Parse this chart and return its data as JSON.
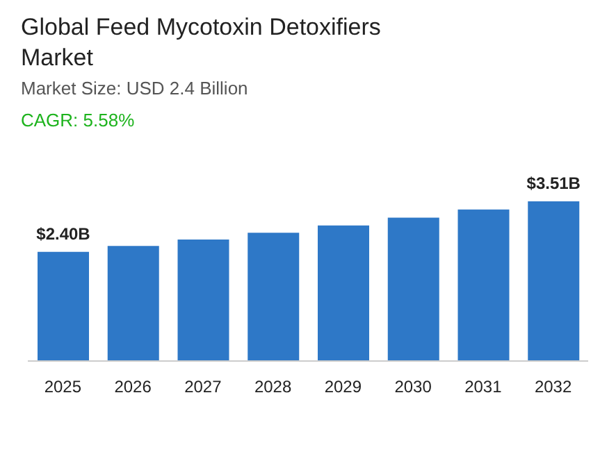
{
  "chart_data": {
    "type": "bar",
    "title": "Global Feed Mycotoxin Detoxifiers Market",
    "subtitle": "Market Size: USD 2.4 Billion",
    "annotations": [
      "CAGR: 5.58%"
    ],
    "categories": [
      "2025",
      "2026",
      "2027",
      "2028",
      "2029",
      "2030",
      "2031",
      "2032"
    ],
    "values": [
      2.4,
      2.53,
      2.67,
      2.82,
      2.98,
      3.15,
      3.33,
      3.51
    ],
    "value_labels": [
      "$2.40B",
      null,
      null,
      null,
      null,
      null,
      null,
      "$3.51B"
    ],
    "color": "#2e78c7"
  }
}
